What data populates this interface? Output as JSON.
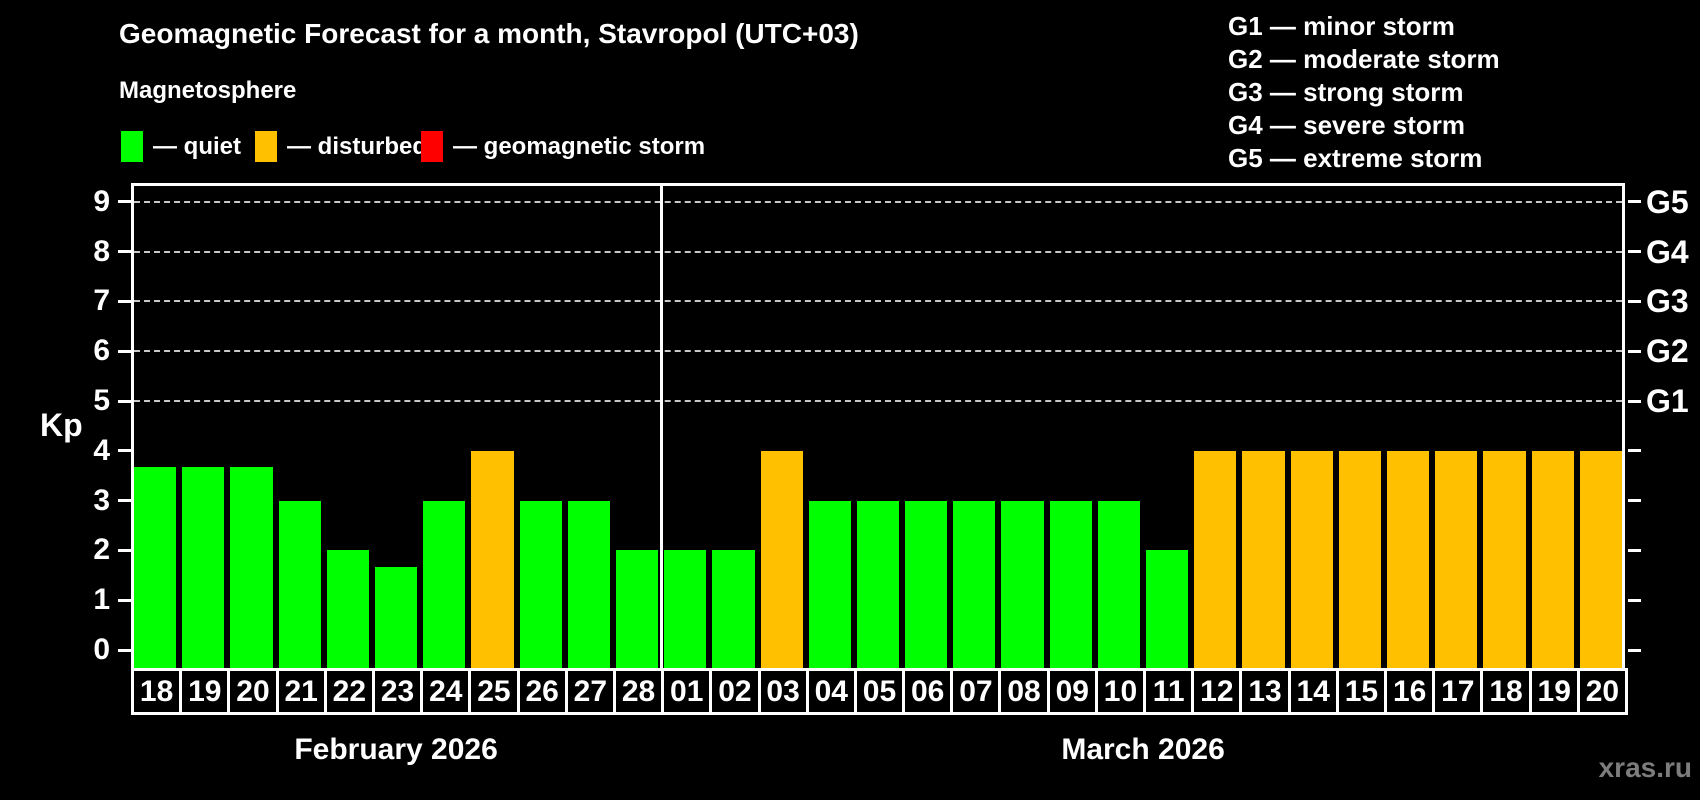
{
  "watermark": "xras.ru",
  "chart_data": {
    "type": "bar",
    "title": "Geomagnetic Forecast for a month, Stavropol (UTC+03)",
    "subtitle": "Magnetosphere",
    "ylabel": "Kp",
    "ylim": [
      0,
      9
    ],
    "yticks": [
      0,
      1,
      2,
      3,
      4,
      5,
      6,
      7,
      8,
      9
    ],
    "gridlines_at": [
      5,
      6,
      7,
      8,
      9
    ],
    "legend_position": "top-left",
    "colors": {
      "quiet": "#00ff00",
      "disturbed": "#ffc000",
      "storm": "#ff0000"
    },
    "legend": [
      {
        "status": "quiet",
        "label": "— quiet"
      },
      {
        "status": "disturbed",
        "label": "— disturbed"
      },
      {
        "status": "storm",
        "label": "— geomagnetic storm"
      }
    ],
    "storm_scale": [
      "G1 — minor storm",
      "G2 — moderate storm",
      "G3 — strong storm",
      "G4 — severe storm",
      "G5 — extreme storm"
    ],
    "right_axis": [
      {
        "kp": 5,
        "label": "G1"
      },
      {
        "kp": 6,
        "label": "G2"
      },
      {
        "kp": 7,
        "label": "G3"
      },
      {
        "kp": 8,
        "label": "G4"
      },
      {
        "kp": 9,
        "label": "G5"
      }
    ],
    "months": [
      {
        "label": "February 2026",
        "days": 11
      },
      {
        "label": "March 2026",
        "days": 20
      }
    ],
    "bars": [
      {
        "month": "February 2026",
        "day": "18",
        "kp": 3.67,
        "status": "quiet"
      },
      {
        "month": "February 2026",
        "day": "19",
        "kp": 3.67,
        "status": "quiet"
      },
      {
        "month": "February 2026",
        "day": "20",
        "kp": 3.67,
        "status": "quiet"
      },
      {
        "month": "February 2026",
        "day": "21",
        "kp": 3,
        "status": "quiet"
      },
      {
        "month": "February 2026",
        "day": "22",
        "kp": 2,
        "status": "quiet"
      },
      {
        "month": "February 2026",
        "day": "23",
        "kp": 1.67,
        "status": "quiet"
      },
      {
        "month": "February 2026",
        "day": "24",
        "kp": 3,
        "status": "quiet"
      },
      {
        "month": "February 2026",
        "day": "25",
        "kp": 4,
        "status": "disturbed"
      },
      {
        "month": "February 2026",
        "day": "26",
        "kp": 3,
        "status": "quiet"
      },
      {
        "month": "February 2026",
        "day": "27",
        "kp": 3,
        "status": "quiet"
      },
      {
        "month": "February 2026",
        "day": "28",
        "kp": 2,
        "status": "quiet"
      },
      {
        "month": "March 2026",
        "day": "01",
        "kp": 2,
        "status": "quiet"
      },
      {
        "month": "March 2026",
        "day": "02",
        "kp": 2,
        "status": "quiet"
      },
      {
        "month": "March 2026",
        "day": "03",
        "kp": 4,
        "status": "disturbed"
      },
      {
        "month": "March 2026",
        "day": "04",
        "kp": 3,
        "status": "quiet"
      },
      {
        "month": "March 2026",
        "day": "05",
        "kp": 3,
        "status": "quiet"
      },
      {
        "month": "March 2026",
        "day": "06",
        "kp": 3,
        "status": "quiet"
      },
      {
        "month": "March 2026",
        "day": "07",
        "kp": 3,
        "status": "quiet"
      },
      {
        "month": "March 2026",
        "day": "08",
        "kp": 3,
        "status": "quiet"
      },
      {
        "month": "March 2026",
        "day": "09",
        "kp": 3,
        "status": "quiet"
      },
      {
        "month": "March 2026",
        "day": "10",
        "kp": 3,
        "status": "quiet"
      },
      {
        "month": "March 2026",
        "day": "11",
        "kp": 2,
        "status": "quiet"
      },
      {
        "month": "March 2026",
        "day": "12",
        "kp": 4,
        "status": "disturbed"
      },
      {
        "month": "March 2026",
        "day": "13",
        "kp": 4,
        "status": "disturbed"
      },
      {
        "month": "March 2026",
        "day": "14",
        "kp": 4,
        "status": "disturbed"
      },
      {
        "month": "March 2026",
        "day": "15",
        "kp": 4,
        "status": "disturbed"
      },
      {
        "month": "March 2026",
        "day": "16",
        "kp": 4,
        "status": "disturbed"
      },
      {
        "month": "March 2026",
        "day": "17",
        "kp": 4,
        "status": "disturbed"
      },
      {
        "month": "March 2026",
        "day": "18",
        "kp": 4,
        "status": "disturbed"
      },
      {
        "month": "March 2026",
        "day": "19",
        "kp": 4,
        "status": "disturbed"
      },
      {
        "month": "March 2026",
        "day": "20",
        "kp": 4,
        "status": "disturbed"
      }
    ]
  }
}
